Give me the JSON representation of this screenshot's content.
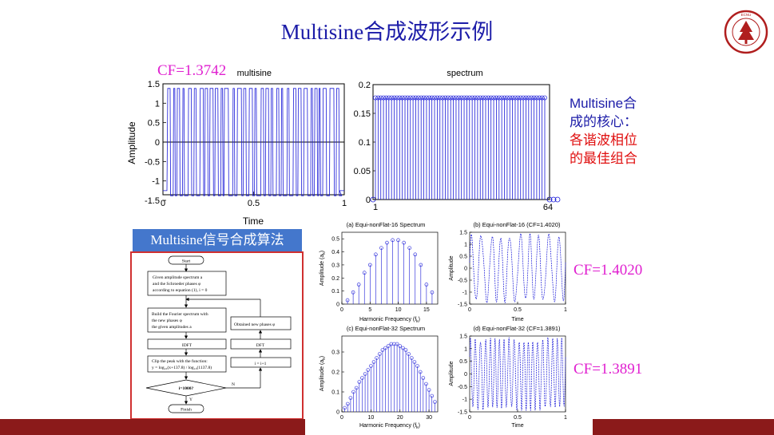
{
  "slide": {
    "title": "Multisine合成波形示例",
    "cf_main": "CF=1.3742",
    "cf_c": "CF=1.4020",
    "cf_d": "CF=1.3891",
    "note_line1": "Multisine合",
    "note_line2": "成的核心：",
    "note_line3": "各谐波相位",
    "note_line4": "的最佳组合",
    "algo_banner": "Multisine信号合成算法",
    "colors": {
      "title": "#1c1ca8",
      "cf": "#e020d0",
      "note_blue": "#1c1ca8",
      "note_red": "#e01010",
      "banner": "#4477cc",
      "frame": "#d03030",
      "bar": "#8b1a1a",
      "plot": "#1a1ad8"
    }
  },
  "logo": {
    "text": "EAST CHINA NORMAL UNIVERSITY",
    "color": "#b01e1e"
  },
  "flowchart": {
    "start": "Start",
    "step1_l1": "Given amplitude spectrum a",
    "step1_l2": "and the Schroeder phases φ",
    "step1_l3": "according to equation (1), i = 0",
    "step2_l1": "Build the Fourier spectrum with",
    "step2_l2": "the new phases φ",
    "step2_l3": "the given amplitudes a",
    "obtained": "Obtained new phases φ",
    "idft": "IDFT",
    "dft": "DFT",
    "clip_l1": "Clip the peak with the function:",
    "clip_l2": "y = log₁₀(x+137.8) / log₁₀(1137.8)",
    "incr": "i = i+1",
    "decision": "i=1000?",
    "yes": "Y",
    "no": "N",
    "finish": "Finish"
  },
  "chart_data": [
    {
      "type": "line",
      "title": "multisine",
      "xlabel": "Time",
      "ylabel": "Amplitude",
      "xlim": [
        0,
        1
      ],
      "ylim": [
        -1.5,
        1.5
      ],
      "xticks": [
        "0",
        "0.5",
        "1"
      ],
      "yticks": [
        "1.5",
        "1",
        "0.5",
        "0",
        "-0.5",
        "-1",
        "-1.5"
      ],
      "grid": false
    },
    {
      "type": "stem",
      "title": "spectrum",
      "xlim": [
        1,
        64
      ],
      "ylim": [
        0,
        0.2
      ],
      "xticks": [
        "1",
        "64"
      ],
      "yticks": [
        "0.2",
        "0.15",
        "0.1",
        "0.05",
        "0"
      ],
      "stem_value": 0.177,
      "stem_count": 64
    },
    {
      "type": "stem",
      "title": "(a) Equi-nonFlat-16 Spectrum",
      "xlabel": "Harmonic Frequency (f",
      "xlabel_sub": "k",
      "ylabel": "Amplitude (a",
      "ylabel_sub": "k",
      "ylim": [
        0,
        0.5
      ],
      "xticks": [
        "0",
        "5",
        "10",
        "15"
      ],
      "yticks": [
        "0.5",
        "0.4",
        "0.3",
        "0.2",
        "0.1",
        "0"
      ],
      "x": [
        1,
        2,
        3,
        4,
        5,
        6,
        7,
        8,
        9,
        10,
        11,
        12,
        13,
        14,
        15,
        16
      ],
      "values": [
        0.03,
        0.09,
        0.15,
        0.24,
        0.3,
        0.38,
        0.43,
        0.47,
        0.49,
        0.49,
        0.47,
        0.43,
        0.38,
        0.3,
        0.15,
        0.09
      ]
    },
    {
      "type": "line",
      "title": "(b) Equi-nonFlat-16 (CF=1.4020)",
      "xlabel": "Time",
      "ylabel": "Amplitude",
      "xlim": [
        0,
        1
      ],
      "ylim": [
        -1.5,
        1.5
      ],
      "xticks": [
        "0",
        "0.5",
        "1"
      ],
      "yticks": [
        "1.5",
        "1",
        "0.5",
        "0",
        "-0.5",
        "-1",
        "-1.5"
      ]
    },
    {
      "type": "stem",
      "title": "(c) Equi-nonFlat-32 Spectrum",
      "xlabel": "Harmonic Frequency (f",
      "xlabel_sub": "k",
      "ylabel": "Amplitude (a",
      "ylabel_sub": "k",
      "ylim": [
        0,
        0.35
      ],
      "xticks": [
        "0",
        "10",
        "20",
        "30"
      ],
      "yticks": [
        "0.3",
        "0.2",
        "0.1",
        "0"
      ],
      "x": [
        1,
        2,
        3,
        4,
        5,
        6,
        7,
        8,
        9,
        10,
        11,
        12,
        13,
        14,
        15,
        16,
        17,
        18,
        19,
        20,
        21,
        22,
        23,
        24,
        25,
        26,
        27,
        28,
        29,
        30,
        31,
        32
      ],
      "values": [
        0.02,
        0.04,
        0.07,
        0.1,
        0.12,
        0.15,
        0.17,
        0.19,
        0.21,
        0.23,
        0.25,
        0.27,
        0.29,
        0.31,
        0.32,
        0.33,
        0.34,
        0.34,
        0.34,
        0.33,
        0.32,
        0.31,
        0.29,
        0.27,
        0.25,
        0.23,
        0.2,
        0.17,
        0.14,
        0.11,
        0.08,
        0.05
      ]
    },
    {
      "type": "line",
      "title": "(d) Equi-nonFlat-32 (CF=1.3891)",
      "xlabel": "Time",
      "ylabel": "Amplitude",
      "xlim": [
        0,
        1
      ],
      "ylim": [
        -1.5,
        1.5
      ],
      "xticks": [
        "0",
        "0.5",
        "1"
      ],
      "yticks": [
        "1.5",
        "1",
        "0.5",
        "0",
        "-0.5",
        "-1",
        "-1.5"
      ]
    }
  ]
}
